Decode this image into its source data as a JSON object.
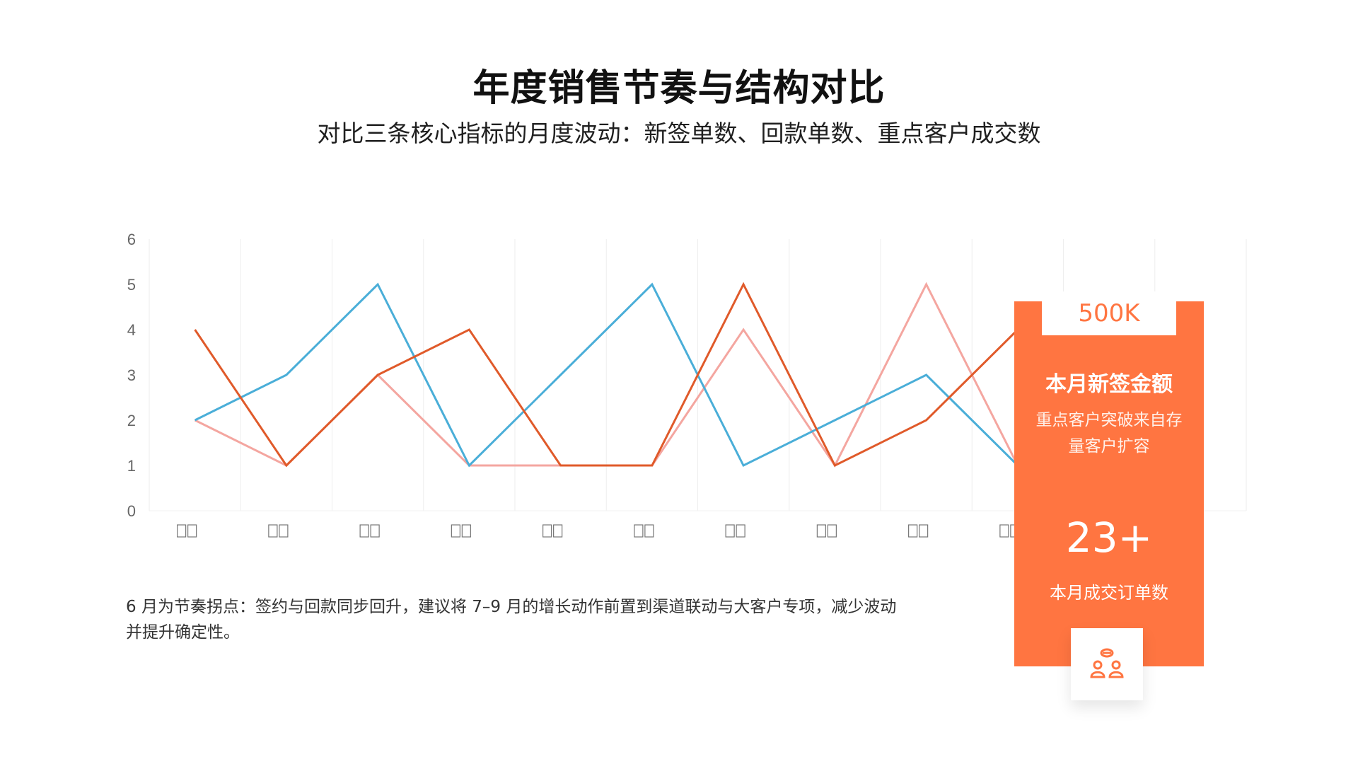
{
  "title": "年度销售节奏与结构对比",
  "subtitle": "对比三条核心指标的月度波动：新签单数、回款单数、重点客户成交数",
  "note": "6 月为节奏拐点：签约与回款同步回升，建议将 7–9 月的增长动作前置到渠道联动与大客户专项，减少波动并提升确定性。",
  "card": {
    "top_value": "500K",
    "heading": "本月新签金额",
    "description": "重点客户突破来自存量客户扩容",
    "big_value": "23+",
    "big_label": "本月成交订单数",
    "icon": "customer-group-icon"
  },
  "chart_data": {
    "type": "line",
    "title": "",
    "xlabel": "",
    "ylabel": "",
    "ylim": [
      0,
      6
    ],
    "y_ticks": [
      0,
      1,
      2,
      3,
      4,
      5,
      6
    ],
    "grid": "vertical",
    "x_count": 12,
    "x_tick_labels": [
      "",
      "",
      "",
      "",
      "",
      "",
      "",
      "",
      "",
      "",
      "",
      ""
    ],
    "series": [
      {
        "color": "#e05a2a",
        "values": [
          4,
          1,
          3,
          4,
          1,
          1,
          5,
          1,
          2,
          4,
          null,
          null
        ]
      },
      {
        "color": "#4aaed8",
        "values": [
          2,
          3,
          5,
          1,
          3,
          5,
          1,
          2,
          3,
          1,
          null,
          null
        ]
      },
      {
        "color": "#f4a6a0",
        "values": [
          2,
          1,
          3,
          1,
          1,
          1,
          4,
          1,
          5,
          1,
          null,
          null
        ]
      }
    ]
  }
}
